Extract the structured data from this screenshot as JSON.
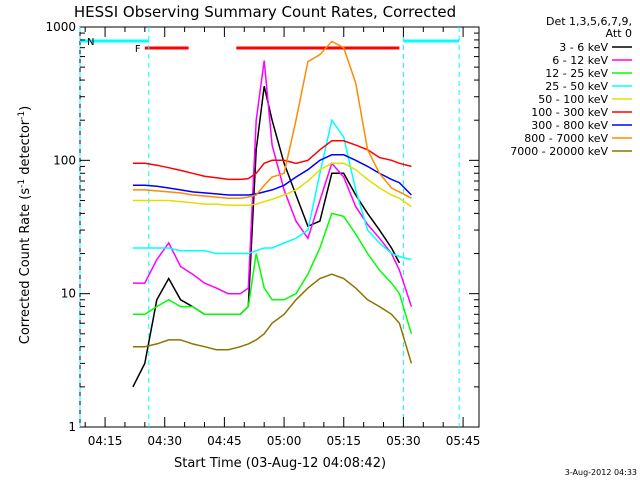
{
  "chart_data": {
    "type": "line",
    "title": "HESSI Observing Summary Count Rates, Corrected",
    "xlabel": "Start Time (03-Aug-12 04:08:42)",
    "ylabel_main": "Corrected Count Rate (s",
    "ylabel_sup1": "-1",
    "ylabel_mid": " detector",
    "ylabel_sup2": "-1",
    "ylabel_end": ")",
    "y_scale": "log",
    "ylim": [
      1,
      1000
    ],
    "xlim": [
      "04:08:42",
      "05:49:00"
    ],
    "x_ticks": [
      "04:15",
      "04:30",
      "04:45",
      "05:00",
      "05:15",
      "05:30",
      "05:45"
    ],
    "y_ticks": [
      "1",
      "10",
      "100",
      "1000"
    ],
    "legend_header": [
      "Det 1,3,5,6,7,9,",
      "Att 0"
    ],
    "legend_position": "outside-right",
    "timestamp": "3-Aug-2012 04:33",
    "series": [
      {
        "name": "3 - 6 keV",
        "color": "#000000",
        "x": [
          "04:22",
          "04:25",
          "04:28",
          "04:31",
          "04:34",
          "04:37",
          "04:40",
          "04:43",
          "04:46",
          "04:49",
          "04:51",
          "04:53",
          "04:55",
          "04:57",
          "05:00",
          "05:03",
          "05:06",
          "05:09",
          "05:12",
          "05:15",
          "05:18",
          "05:21",
          "05:24",
          "05:27",
          "05:29"
        ],
        "y": [
          2,
          3,
          9,
          13,
          9,
          8,
          7,
          7,
          7,
          7,
          8,
          120,
          360,
          200,
          95,
          55,
          32,
          35,
          80,
          80,
          55,
          40,
          30,
          22,
          17
        ]
      },
      {
        "name": "6 - 12 keV",
        "color": "#ff00ff",
        "x": [
          "04:22",
          "04:25",
          "04:28",
          "04:31",
          "04:34",
          "04:37",
          "04:40",
          "04:43",
          "04:46",
          "04:49",
          "04:51",
          "04:53",
          "04:55",
          "04:57",
          "05:00",
          "05:03",
          "05:06",
          "05:09",
          "05:12",
          "05:15",
          "05:18",
          "05:21",
          "05:24",
          "05:27",
          "05:29",
          "05:32"
        ],
        "y": [
          12,
          12,
          18,
          24,
          16,
          14,
          12,
          11,
          10,
          10,
          11,
          200,
          560,
          130,
          60,
          35,
          26,
          50,
          95,
          75,
          45,
          33,
          26,
          20,
          15,
          8
        ]
      },
      {
        "name": "12 - 25 keV",
        "color": "#00ff00",
        "x": [
          "04:22",
          "04:25",
          "04:28",
          "04:31",
          "04:34",
          "04:37",
          "04:40",
          "04:43",
          "04:46",
          "04:49",
          "04:51",
          "04:53",
          "04:55",
          "04:57",
          "05:00",
          "05:03",
          "05:06",
          "05:09",
          "05:12",
          "05:15",
          "05:18",
          "05:21",
          "05:24",
          "05:27",
          "05:29",
          "05:32"
        ],
        "y": [
          7,
          7,
          8,
          9,
          8,
          8,
          7,
          7,
          7,
          7,
          8,
          20,
          11,
          9,
          9,
          10,
          14,
          22,
          40,
          38,
          28,
          20,
          15,
          12,
          10,
          5
        ]
      },
      {
        "name": "25 - 50 keV",
        "color": "#00ffff",
        "x": [
          "04:22",
          "04:25",
          "04:28",
          "04:31",
          "04:34",
          "04:37",
          "04:40",
          "04:43",
          "04:46",
          "04:49",
          "04:51",
          "04:53",
          "04:55",
          "04:57",
          "05:00",
          "05:03",
          "05:06",
          "05:09",
          "05:12",
          "05:15",
          "05:18",
          "05:21",
          "05:24",
          "05:27",
          "05:29",
          "05:32"
        ],
        "y": [
          22,
          22,
          22,
          22,
          21,
          21,
          21,
          20,
          20,
          20,
          20,
          21,
          22,
          22,
          24,
          26,
          30,
          80,
          200,
          150,
          60,
          30,
          24,
          20,
          19,
          18
        ]
      },
      {
        "name": "50 - 100 keV",
        "color": "#e0e000",
        "x": [
          "04:22",
          "04:25",
          "04:28",
          "04:31",
          "04:34",
          "04:37",
          "04:40",
          "04:43",
          "04:46",
          "04:49",
          "04:51",
          "04:53",
          "04:55",
          "04:57",
          "05:00",
          "05:03",
          "05:06",
          "05:09",
          "05:12",
          "05:15",
          "05:18",
          "05:21",
          "05:24",
          "05:27",
          "05:29",
          "05:32"
        ],
        "y": [
          50,
          50,
          50,
          50,
          49,
          48,
          47,
          47,
          46,
          46,
          46,
          47,
          49,
          51,
          55,
          60,
          70,
          85,
          95,
          95,
          85,
          72,
          62,
          55,
          52,
          45
        ]
      },
      {
        "name": "100 - 300 keV",
        "color": "#ff0000",
        "x": [
          "04:22",
          "04:25",
          "04:28",
          "04:31",
          "04:34",
          "04:37",
          "04:40",
          "04:43",
          "04:46",
          "04:49",
          "04:51",
          "04:53",
          "04:55",
          "04:57",
          "05:00",
          "05:03",
          "05:06",
          "05:09",
          "05:12",
          "05:15",
          "05:18",
          "05:21",
          "05:24",
          "05:27",
          "05:29",
          "05:32"
        ],
        "y": [
          95,
          95,
          92,
          88,
          84,
          80,
          76,
          74,
          72,
          72,
          73,
          80,
          95,
          100,
          100,
          95,
          100,
          120,
          140,
          140,
          130,
          120,
          105,
          100,
          95,
          90
        ]
      },
      {
        "name": "300 - 800 keV",
        "color": "#0000ff",
        "x": [
          "04:22",
          "04:25",
          "04:28",
          "04:31",
          "04:34",
          "04:37",
          "04:40",
          "04:43",
          "04:46",
          "04:49",
          "04:51",
          "04:53",
          "04:55",
          "04:57",
          "05:00",
          "05:03",
          "05:06",
          "05:09",
          "05:12",
          "05:15",
          "05:18",
          "05:21",
          "05:24",
          "05:27",
          "05:29",
          "05:32"
        ],
        "y": [
          65,
          65,
          64,
          62,
          60,
          58,
          57,
          56,
          55,
          55,
          55,
          56,
          58,
          60,
          65,
          75,
          85,
          100,
          110,
          110,
          100,
          90,
          80,
          72,
          68,
          55
        ]
      },
      {
        "name": "800 - 7000 keV",
        "color": "#ff8c00",
        "x": [
          "04:22",
          "04:25",
          "04:28",
          "04:31",
          "04:34",
          "04:37",
          "04:40",
          "04:43",
          "04:46",
          "04:49",
          "04:51",
          "04:53",
          "04:55",
          "04:57",
          "05:00",
          "05:03",
          "05:06",
          "05:09",
          "05:12",
          "05:15",
          "05:18",
          "05:21",
          "05:24",
          "05:27",
          "05:29",
          "05:32"
        ],
        "y": [
          60,
          60,
          59,
          58,
          57,
          55,
          54,
          53,
          52,
          52,
          53,
          55,
          65,
          75,
          80,
          200,
          550,
          620,
          780,
          700,
          380,
          120,
          80,
          62,
          58,
          52
        ]
      },
      {
        "name": "7000 - 20000 keV",
        "color": "#8b7500",
        "x": [
          "04:22",
          "04:25",
          "04:28",
          "04:31",
          "04:34",
          "04:37",
          "04:40",
          "04:43",
          "04:46",
          "04:49",
          "04:51",
          "04:53",
          "04:55",
          "04:57",
          "05:00",
          "05:03",
          "05:06",
          "05:09",
          "05:12",
          "05:15",
          "05:18",
          "05:21",
          "05:24",
          "05:27",
          "05:29",
          "05:32"
        ],
        "y": [
          4,
          4,
          4.2,
          4.5,
          4.5,
          4.2,
          4,
          3.8,
          3.8,
          4,
          4.2,
          4.5,
          5,
          6,
          7,
          9,
          11,
          13,
          14,
          13,
          11,
          9,
          8,
          7,
          6,
          3
        ]
      }
    ],
    "flags": [
      {
        "label": "F",
        "color": "#ff0000",
        "segments": [
          [
            "04:25",
            "04:36"
          ],
          [
            "04:48",
            "05:29"
          ]
        ]
      },
      {
        "label": "N",
        "color": "#00ffff",
        "segments": [
          [
            "04:08:42",
            "04:26"
          ],
          [
            "05:30",
            "05:44"
          ]
        ]
      }
    ],
    "markers": [
      "04:08:42",
      "04:26",
      "05:30",
      "05:44"
    ]
  }
}
